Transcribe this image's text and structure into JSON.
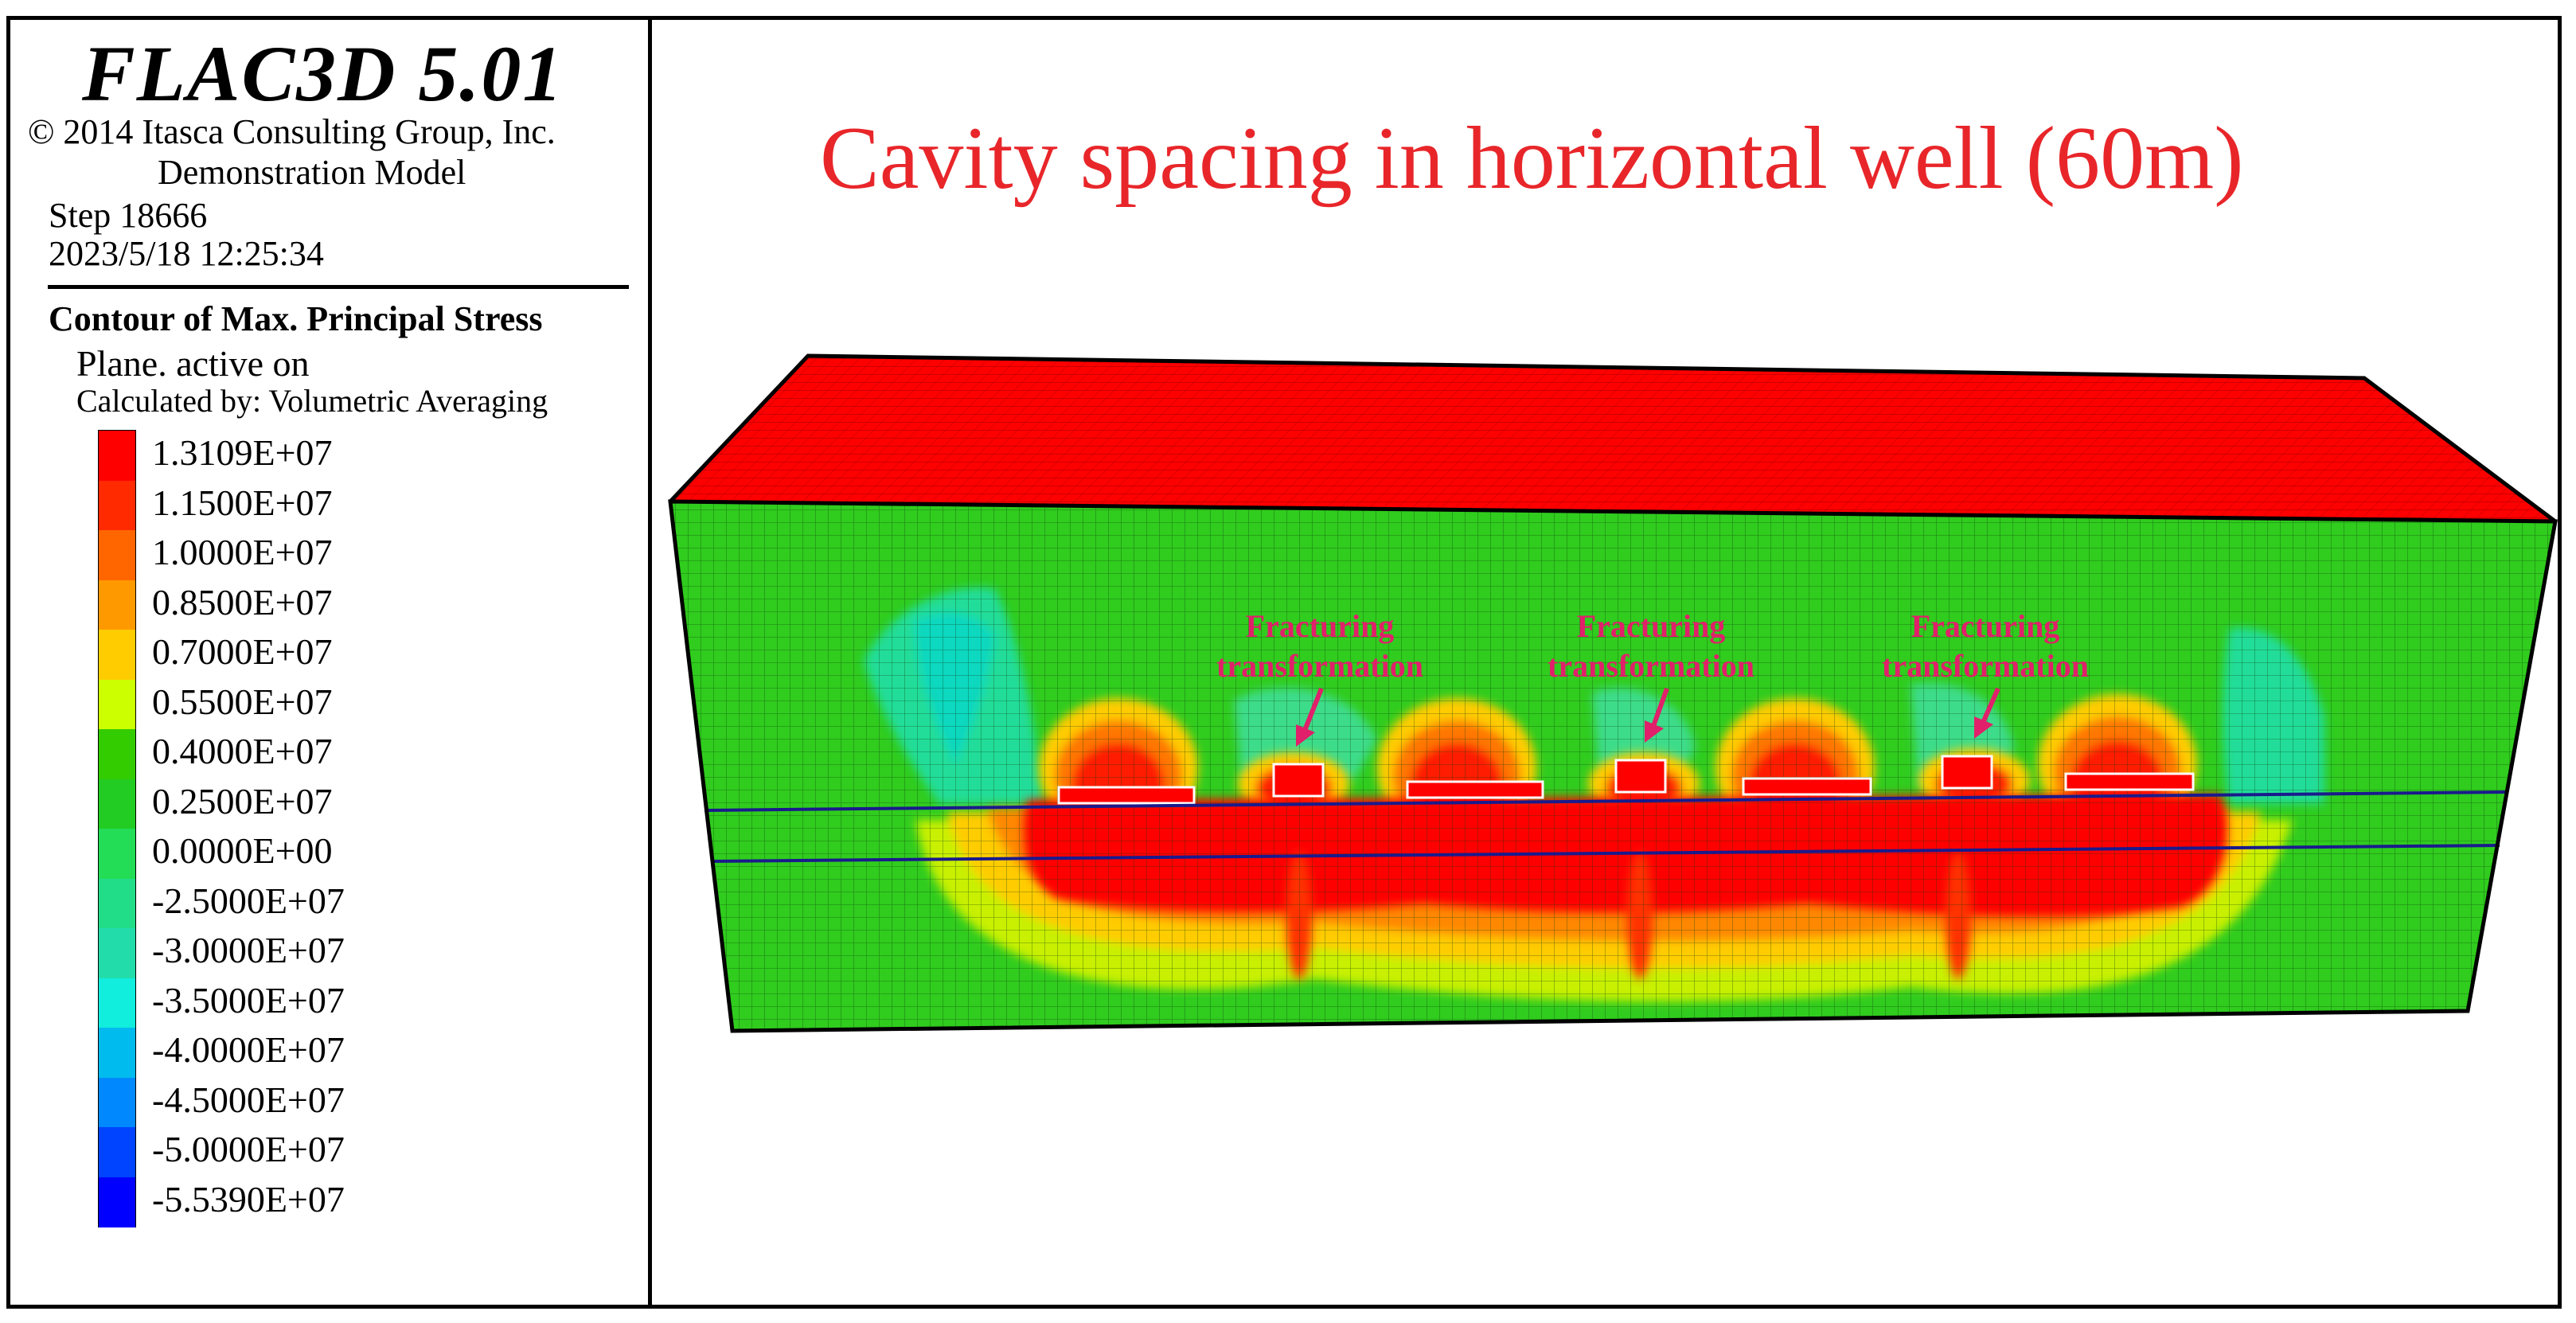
{
  "header": {
    "app_title": "FLAC3D 5.01",
    "copyright": "© 2014 Itasca Consulting Group, Inc.",
    "model_type": "Demonstration Model",
    "step": "Step 18666",
    "datetime": "2023/5/18 12:25:34"
  },
  "legend": {
    "title": "Contour of Max. Principal Stress",
    "plane": "Plane. active on",
    "calculated_by": "Calculated by: Volumetric Averaging",
    "entries": [
      {
        "label": "1.3109E+07",
        "color": "#ff0000"
      },
      {
        "label": "1.1500E+07",
        "color": "#ff2a00"
      },
      {
        "label": "1.0000E+07",
        "color": "#ff6600"
      },
      {
        "label": "0.8500E+07",
        "color": "#ff9900"
      },
      {
        "label": "0.7000E+07",
        "color": "#ffcc00"
      },
      {
        "label": "0.5500E+07",
        "color": "#ccff00"
      },
      {
        "label": "0.4000E+07",
        "color": "#33cc00"
      },
      {
        "label": "0.2500E+07",
        "color": "#22cc22"
      },
      {
        "label": "0.0000E+00",
        "color": "#22dd55"
      },
      {
        "label": "-2.5000E+07",
        "color": "#22dd88"
      },
      {
        "label": "-3.0000E+07",
        "color": "#22ddaa"
      },
      {
        "label": "-3.5000E+07",
        "color": "#11eedd"
      },
      {
        "label": "-4.0000E+07",
        "color": "#00bbee"
      },
      {
        "label": "-4.5000E+07",
        "color": "#0088ff"
      },
      {
        "label": "-5.0000E+07",
        "color": "#0044ff"
      },
      {
        "label": "-5.5390E+07",
        "color": "#0000ff"
      }
    ]
  },
  "plot": {
    "title": "Cavity spacing in horizontal well (60m)",
    "annotations": [
      {
        "line1": "Fracturing",
        "line2": "transformation"
      },
      {
        "line1": "Fracturing",
        "line2": "transformation"
      },
      {
        "line1": "Fracturing",
        "line2": "transformation"
      }
    ]
  },
  "colors": {
    "title_red": "#e8262a",
    "annotation_magenta": "#e0206a",
    "well_line": "#1a1a8c"
  }
}
